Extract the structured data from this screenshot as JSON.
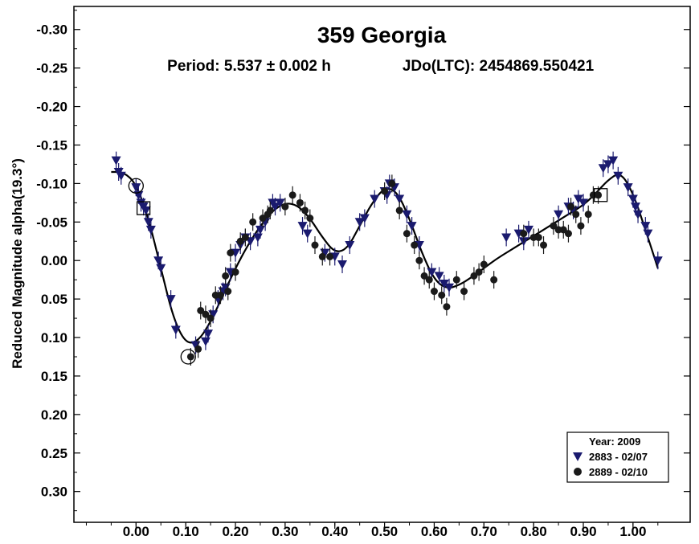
{
  "chart_data": {
    "type": "scatter",
    "title": "359 Georgia",
    "subtitle_period": "Period: 5.537 ± 0.002 h",
    "subtitle_epoch": "JDo(LTC): 2454869.550421",
    "xlabel": "",
    "ylabel": "Reduced Magnitude alpha(19.3°)",
    "xlim": [
      -0.125,
      1.115
    ],
    "ylim": [
      -0.33,
      0.34
    ],
    "y_inverted": true,
    "grid": false,
    "x_ticks": [
      0.0,
      0.1,
      0.2,
      0.3,
      0.4,
      0.5,
      0.6,
      0.7,
      0.8,
      0.9,
      1.0
    ],
    "x_tick_labels": [
      "0.00",
      "0.10",
      "0.20",
      "0.30",
      "0.40",
      "0.50",
      "0.60",
      "0.70",
      "0.80",
      "0.90",
      "1.00"
    ],
    "y_ticks": [
      -0.3,
      -0.25,
      -0.2,
      -0.15,
      -0.1,
      -0.05,
      0.0,
      0.05,
      0.1,
      0.15,
      0.2,
      0.25,
      0.3
    ],
    "y_tick_labels": [
      "-0.30",
      "-0.25",
      "-0.20",
      "-0.15",
      "-0.10",
      "-0.05",
      "0.00",
      "0.05",
      "0.10",
      "0.15",
      "0.20",
      "0.25",
      "0.30"
    ],
    "legend": {
      "placement": "bottom-right",
      "title": "Year: 2009",
      "entries": [
        {
          "label": "2883 - 02/07",
          "marker": "triangle-down",
          "color": "#1a1a6e"
        },
        {
          "label": "2889 - 02/10",
          "marker": "circle",
          "color": "#1a1a1a"
        }
      ]
    },
    "series": [
      {
        "name": "2883 - 02/07",
        "marker": "triangle-down",
        "color": "#1a1a6e",
        "points": [
          [
            -0.04,
            -0.13
          ],
          [
            -0.035,
            -0.115
          ],
          [
            -0.03,
            -0.11
          ],
          [
            0.0,
            -0.095
          ],
          [
            0.005,
            -0.085
          ],
          [
            0.01,
            -0.075
          ],
          [
            0.015,
            -0.07
          ],
          [
            0.02,
            -0.065
          ],
          [
            0.025,
            -0.05
          ],
          [
            0.03,
            -0.04
          ],
          [
            0.045,
            0.0
          ],
          [
            0.05,
            0.01
          ],
          [
            0.07,
            0.05
          ],
          [
            0.08,
            0.09
          ],
          [
            0.12,
            0.11
          ],
          [
            0.14,
            0.105
          ],
          [
            0.145,
            0.095
          ],
          [
            0.155,
            0.07
          ],
          [
            0.165,
            0.05
          ],
          [
            0.175,
            0.04
          ],
          [
            0.18,
            0.035
          ],
          [
            0.19,
            0.015
          ],
          [
            0.2,
            -0.01
          ],
          [
            0.21,
            -0.02
          ],
          [
            0.22,
            -0.03
          ],
          [
            0.23,
            -0.025
          ],
          [
            0.245,
            -0.03
          ],
          [
            0.25,
            -0.04
          ],
          [
            0.26,
            -0.05
          ],
          [
            0.275,
            -0.075
          ],
          [
            0.28,
            -0.07
          ],
          [
            0.29,
            -0.075
          ],
          [
            0.335,
            -0.045
          ],
          [
            0.345,
            -0.035
          ],
          [
            0.38,
            -0.01
          ],
          [
            0.4,
            -0.005
          ],
          [
            0.415,
            0.005
          ],
          [
            0.43,
            -0.02
          ],
          [
            0.45,
            -0.05
          ],
          [
            0.46,
            -0.055
          ],
          [
            0.48,
            -0.08
          ],
          [
            0.5,
            -0.09
          ],
          [
            0.505,
            -0.085
          ],
          [
            0.51,
            -0.1
          ],
          [
            0.52,
            -0.095
          ],
          [
            0.53,
            -0.08
          ],
          [
            0.545,
            -0.06
          ],
          [
            0.555,
            -0.045
          ],
          [
            0.57,
            -0.02
          ],
          [
            0.595,
            0.015
          ],
          [
            0.61,
            0.02
          ],
          [
            0.62,
            0.03
          ],
          [
            0.63,
            0.035
          ],
          [
            0.745,
            -0.03
          ],
          [
            0.77,
            -0.035
          ],
          [
            0.78,
            -0.025
          ],
          [
            0.79,
            -0.04
          ],
          [
            0.85,
            -0.06
          ],
          [
            0.87,
            -0.07
          ],
          [
            0.88,
            -0.065
          ],
          [
            0.89,
            -0.08
          ],
          [
            0.9,
            -0.075
          ],
          [
            0.94,
            -0.12
          ],
          [
            0.95,
            -0.125
          ],
          [
            0.96,
            -0.13
          ],
          [
            0.97,
            -0.11
          ],
          [
            0.99,
            -0.095
          ],
          [
            1.0,
            -0.08
          ],
          [
            1.005,
            -0.07
          ],
          [
            1.01,
            -0.06
          ],
          [
            1.025,
            -0.045
          ],
          [
            1.03,
            -0.035
          ],
          [
            1.05,
            0.0
          ]
        ]
      },
      {
        "name": "2889 - 02/10",
        "marker": "circle",
        "color": "#1a1a1a",
        "points": [
          [
            0.11,
            0.125
          ],
          [
            0.125,
            0.115
          ],
          [
            0.13,
            0.065
          ],
          [
            0.14,
            0.07
          ],
          [
            0.15,
            0.075
          ],
          [
            0.16,
            0.045
          ],
          [
            0.17,
            0.045
          ],
          [
            0.18,
            0.02
          ],
          [
            0.185,
            0.04
          ],
          [
            0.19,
            -0.01
          ],
          [
            0.2,
            0.015
          ],
          [
            0.21,
            -0.025
          ],
          [
            0.22,
            -0.03
          ],
          [
            0.235,
            -0.05
          ],
          [
            0.255,
            -0.055
          ],
          [
            0.265,
            -0.06
          ],
          [
            0.27,
            -0.065
          ],
          [
            0.3,
            -0.07
          ],
          [
            0.315,
            -0.085
          ],
          [
            0.33,
            -0.075
          ],
          [
            0.34,
            -0.065
          ],
          [
            0.35,
            -0.055
          ],
          [
            0.36,
            -0.02
          ],
          [
            0.375,
            -0.005
          ],
          [
            0.39,
            -0.005
          ],
          [
            0.5,
            -0.09
          ],
          [
            0.515,
            -0.1
          ],
          [
            0.53,
            -0.065
          ],
          [
            0.545,
            -0.035
          ],
          [
            0.56,
            -0.02
          ],
          [
            0.57,
            0.0
          ],
          [
            0.58,
            0.02
          ],
          [
            0.59,
            0.025
          ],
          [
            0.6,
            0.04
          ],
          [
            0.615,
            0.045
          ],
          [
            0.625,
            0.06
          ],
          [
            0.645,
            0.025
          ],
          [
            0.66,
            0.04
          ],
          [
            0.68,
            0.02
          ],
          [
            0.69,
            0.015
          ],
          [
            0.7,
            0.005
          ],
          [
            0.72,
            0.025
          ],
          [
            0.78,
            -0.035
          ],
          [
            0.8,
            -0.03
          ],
          [
            0.81,
            -0.03
          ],
          [
            0.82,
            -0.02
          ],
          [
            0.84,
            -0.045
          ],
          [
            0.85,
            -0.04
          ],
          [
            0.86,
            -0.04
          ],
          [
            0.87,
            -0.035
          ],
          [
            0.875,
            -0.07
          ],
          [
            0.885,
            -0.06
          ],
          [
            0.895,
            -0.045
          ],
          [
            0.91,
            -0.06
          ],
          [
            0.92,
            -0.085
          ],
          [
            0.93,
            -0.085
          ]
        ]
      }
    ],
    "fit_curve": {
      "name": "fit",
      "x": [
        -0.05,
        -0.025,
        0.0,
        0.025,
        0.05,
        0.075,
        0.1,
        0.125,
        0.15,
        0.175,
        0.2,
        0.225,
        0.25,
        0.275,
        0.3,
        0.325,
        0.35,
        0.375,
        0.4,
        0.425,
        0.45,
        0.475,
        0.5,
        0.525,
        0.55,
        0.575,
        0.6,
        0.625,
        0.65,
        0.675,
        0.7,
        0.725,
        0.75,
        0.775,
        0.8,
        0.825,
        0.85,
        0.875,
        0.9,
        0.925,
        0.95,
        0.975,
        1.0,
        1.025,
        1.05
      ],
      "y": [
        -0.115,
        -0.115,
        -0.1,
        -0.055,
        0.01,
        0.075,
        0.108,
        0.105,
        0.08,
        0.045,
        0.01,
        -0.02,
        -0.045,
        -0.065,
        -0.075,
        -0.072,
        -0.055,
        -0.03,
        -0.01,
        -0.015,
        -0.045,
        -0.075,
        -0.095,
        -0.09,
        -0.055,
        -0.01,
        0.025,
        0.037,
        0.032,
        0.022,
        0.01,
        -0.002,
        -0.012,
        -0.022,
        -0.032,
        -0.042,
        -0.052,
        -0.062,
        -0.072,
        -0.087,
        -0.105,
        -0.115,
        -0.088,
        -0.04,
        0.01
      ]
    },
    "highlighted": {
      "circles": [
        [
          -0.0,
          -0.097
        ],
        [
          0.105,
          0.125
        ]
      ],
      "squares": [
        [
          0.015,
          -0.068
        ],
        [
          0.935,
          -0.085
        ]
      ]
    }
  }
}
